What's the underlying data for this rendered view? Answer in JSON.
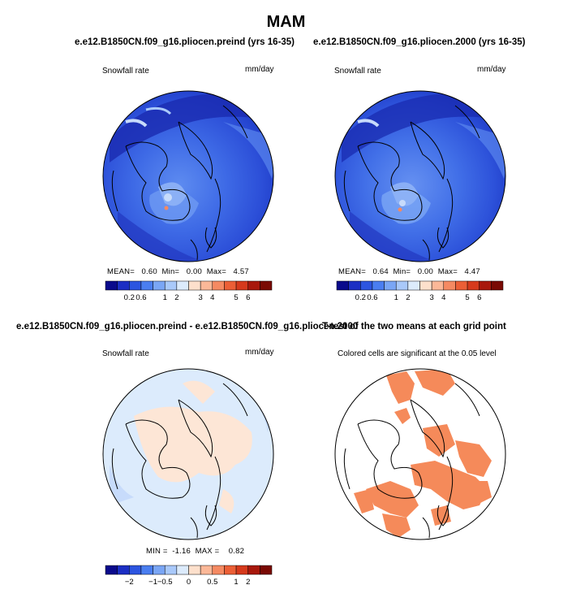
{
  "figure_title": "MAM",
  "panels": [
    {
      "title": "e.e12.B1850CN.f09_g16.pliocen.preind (yrs 16-35)",
      "variable": "Snowfall rate",
      "units": "mm/day",
      "stats": {
        "mean_label": "MEAN=",
        "mean": "0.60",
        "min_label": "Min=",
        "min": "0.00",
        "max_label": "Max=",
        "max": "4.57"
      },
      "colorbar_id": "abs"
    },
    {
      "title": "e.e12.B1850CN.f09_g16.pliocen.2000 (yrs 16-35)",
      "variable": "Snowfall rate",
      "units": "mm/day",
      "stats": {
        "mean_label": "MEAN=",
        "mean": "0.64",
        "min_label": "Min=",
        "min": "0.00",
        "max_label": "Max=",
        "max": "4.47"
      },
      "colorbar_id": "abs"
    },
    {
      "title": "e.e12.B1850CN.f09_g16.pliocen.preind - e.e12.B1850CN.f09_g16.pliocen.2000",
      "variable": "Snowfall rate",
      "units": "mm/day",
      "stats": {
        "min_label": "MIN =",
        "min": "-1.16",
        "max_label": "MAX =",
        "max": "0.82"
      },
      "colorbar_id": "diff"
    },
    {
      "title": "T-test of the two means at each grid point",
      "subtitle": "Colored cells are significant at the 0.05 level"
    }
  ],
  "colorbars": {
    "abs": {
      "colors": [
        "#0a0a8c",
        "#1c2fc4",
        "#2c55e0",
        "#4a7ef0",
        "#7aa6f5",
        "#a9c9fa",
        "#dcebfc",
        "#fde0cc",
        "#fbb898",
        "#f58a62",
        "#ec5f36",
        "#d63a1c",
        "#a8180c",
        "#7a0a04"
      ],
      "labels": [
        "0.2",
        "0.6",
        "1",
        "2",
        "3",
        "4",
        "5",
        "6"
      ]
    },
    "diff": {
      "colors": [
        "#0a0a8c",
        "#1c2fc4",
        "#2c55e0",
        "#4a7ef0",
        "#7aa6f5",
        "#a9c9fa",
        "#dcebfc",
        "#fde0cc",
        "#fbb898",
        "#f58a62",
        "#ec5f36",
        "#d63a1c",
        "#a8180c",
        "#7a0a04"
      ],
      "labels": [
        "−2",
        "−1",
        "−0.5",
        "0",
        "0.5",
        "1",
        "2"
      ]
    }
  },
  "chart_data": [
    {
      "type": "heatmap",
      "projection": "north-polar-stereographic",
      "title": "e.e12.B1850CN.f09_g16.pliocen.preind (yrs 16-35)",
      "variable": "Snowfall rate",
      "units": "mm/day",
      "mean": 0.6,
      "min": 0.0,
      "max": 4.57,
      "levels": [
        0.2,
        0.6,
        1,
        2,
        3,
        4,
        5,
        6
      ]
    },
    {
      "type": "heatmap",
      "projection": "north-polar-stereographic",
      "title": "e.e12.B1850CN.f09_g16.pliocen.2000 (yrs 16-35)",
      "variable": "Snowfall rate",
      "units": "mm/day",
      "mean": 0.64,
      "min": 0.0,
      "max": 4.47,
      "levels": [
        0.2,
        0.6,
        1,
        2,
        3,
        4,
        5,
        6
      ]
    },
    {
      "type": "heatmap",
      "projection": "north-polar-stereographic",
      "title": "e.e12.B1850CN.f09_g16.pliocen.preind - e.e12.B1850CN.f09_g16.pliocen.2000",
      "variable": "Snowfall rate",
      "units": "mm/day",
      "min": -1.16,
      "max": 0.82,
      "levels": [
        -2,
        -1,
        -0.5,
        0,
        0.5,
        1,
        2
      ]
    },
    {
      "type": "heatmap",
      "projection": "north-polar-stereographic",
      "title": "T-test of the two means at each grid point",
      "subtitle": "Colored cells are significant at the 0.05 level",
      "significance_level": 0.05
    }
  ]
}
